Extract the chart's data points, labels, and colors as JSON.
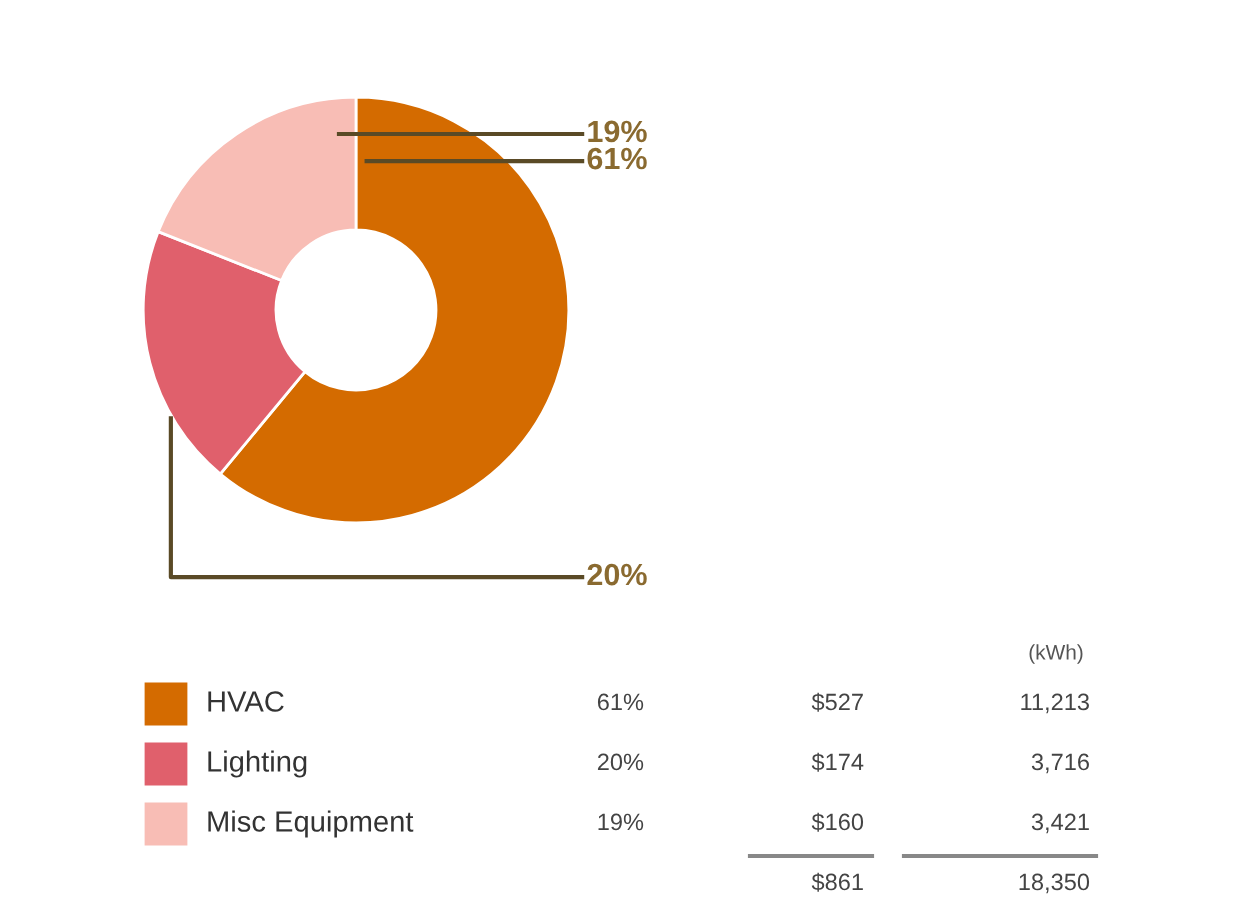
{
  "chart_data": {
    "type": "donut",
    "categories": [
      "HVAC",
      "Lighting",
      "Misc Equipment"
    ],
    "values": [
      61,
      20,
      19
    ],
    "colors": [
      "#d46b00",
      "#e0606c",
      "#f8bdb5"
    ],
    "value_labels": [
      "61%",
      "20%",
      "19%"
    ],
    "legend": "bottom",
    "annotations": [
      "(kWh)",
      "61%",
      "$527",
      "11,213",
      "20%",
      "$174",
      "3,716",
      "19%",
      "$160",
      "3,421",
      "$861",
      "18,350"
    ]
  }
}
